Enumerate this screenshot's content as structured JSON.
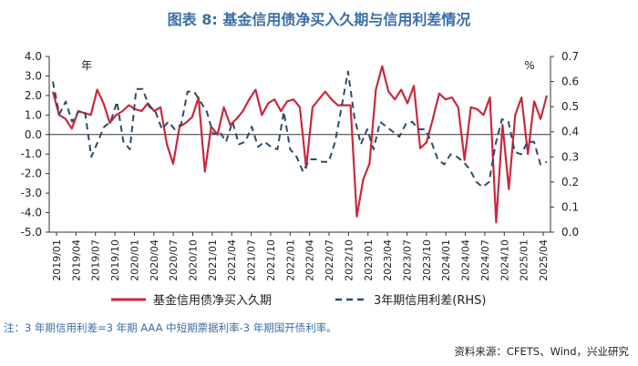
{
  "title": "图表 8:  基金信用债净买入久期与信用利差情况",
  "note": "注：3 年期信用利差=3 年期 AAA 中短期票据利率-3 年期国开债利率。",
  "source": "资料来源：CFETS、Wind，兴业研究",
  "chart_data": {
    "type": "line",
    "left_unit": "年",
    "right_unit": "%",
    "ylim_left": [
      -5.0,
      4.0
    ],
    "ylim_right": [
      0.0,
      0.7
    ],
    "left_ticks": [
      "4.0",
      "3.0",
      "2.0",
      "1.0",
      "0.0",
      "-1.0",
      "-2.0",
      "-3.0",
      "-4.0",
      "-5.0"
    ],
    "right_ticks": [
      "0.7",
      "0.6",
      "0.5",
      "0.4",
      "0.3",
      "0.2",
      "0.1",
      "0.0"
    ],
    "x_tick_labels": [
      "2019/01",
      "2019/04",
      "2019/07",
      "2019/10",
      "2020/01",
      "2020/04",
      "2020/07",
      "2020/10",
      "2021/01",
      "2021/04",
      "2021/07",
      "2021/10",
      "2022/01",
      "2022/04",
      "2022/07",
      "2022/10",
      "2023/01",
      "2023/04",
      "2023/07",
      "2023/10",
      "2024/01",
      "2024/04",
      "2024/07",
      "2024/10",
      "2025/01",
      "2025/04"
    ],
    "series": [
      {
        "name": "基金信用债净买入久期",
        "axis": "left",
        "color": "#c8293e",
        "values": [
          2.2,
          1.0,
          0.8,
          0.3,
          1.2,
          1.1,
          1.0,
          2.3,
          1.6,
          0.6,
          1.0,
          1.2,
          1.5,
          1.3,
          1.2,
          1.6,
          1.2,
          1.4,
          -0.5,
          -1.5,
          0.4,
          0.6,
          0.9,
          1.9,
          -1.9,
          0.4,
          0.0,
          1.4,
          0.5,
          0.8,
          1.2,
          1.8,
          2.3,
          1.0,
          1.6,
          1.8,
          1.2,
          1.7,
          1.8,
          1.4,
          -1.7,
          1.4,
          1.8,
          2.2,
          1.8,
          1.5,
          1.5,
          1.5,
          -4.2,
          -2.3,
          -1.5,
          2.3,
          3.5,
          2.2,
          1.8,
          2.3,
          1.6,
          2.5,
          -0.7,
          -0.4,
          0.8,
          2.1,
          1.8,
          1.9,
          1.4,
          -1.3,
          1.4,
          1.3,
          1.0,
          1.9,
          -4.5,
          0.5,
          -2.8,
          1.0,
          1.9,
          -1.0,
          1.7,
          0.8,
          2.0
        ],
        "labels": [
          "基金信用债净买入久期"
        ]
      },
      {
        "name": "3年期信用利差(RHS)",
        "axis": "right",
        "color": "#2e4a6b",
        "values": [
          0.6,
          0.47,
          0.52,
          0.44,
          0.48,
          0.48,
          0.3,
          0.36,
          0.42,
          0.44,
          0.52,
          0.36,
          0.33,
          0.57,
          0.57,
          0.5,
          0.48,
          0.41,
          0.44,
          0.41,
          0.43,
          0.56,
          0.56,
          0.52,
          0.48,
          0.39,
          0.4,
          0.36,
          0.44,
          0.35,
          0.36,
          0.42,
          0.34,
          0.36,
          0.34,
          0.33,
          0.48,
          0.33,
          0.3,
          0.24,
          0.29,
          0.29,
          0.28,
          0.28,
          0.36,
          0.5,
          0.64,
          0.46,
          0.35,
          0.41,
          0.33,
          0.44,
          0.42,
          0.4,
          0.38,
          0.43,
          0.44,
          0.41,
          0.41,
          0.36,
          0.29,
          0.27,
          0.31,
          0.3,
          0.28,
          0.25,
          0.2,
          0.18,
          0.2,
          0.35,
          0.45,
          0.44,
          0.32,
          0.31,
          0.36,
          0.36,
          0.27,
          0.28
        ]
      }
    ]
  }
}
